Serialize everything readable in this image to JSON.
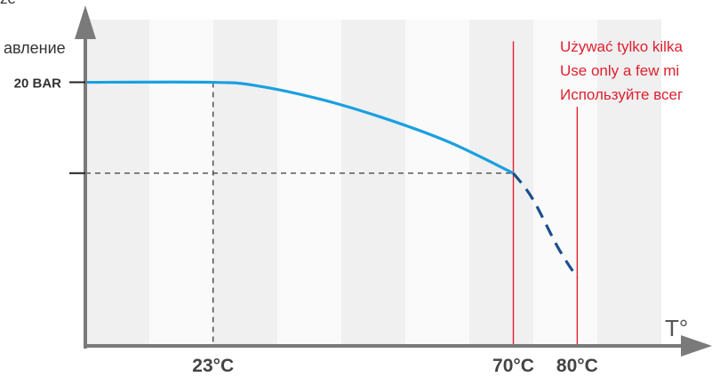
{
  "chart_data": {
    "type": "line",
    "ylabel_top": "ze",
    "ylabel": "авление",
    "xlabel": "T°",
    "ytick_label": "20 BAR",
    "x_ticks": [
      {
        "value": 23,
        "label": "23°C"
      },
      {
        "value": 70,
        "label": "70°C"
      },
      {
        "value": 80,
        "label": "80°C"
      }
    ],
    "y_ticks": [
      {
        "value": 20,
        "label": "20 BAR"
      },
      {
        "value": 10,
        "label": ""
      }
    ],
    "xlim": [
      3,
      94
    ],
    "ylim": [
      -9,
      27
    ],
    "series": [
      {
        "style": "solid",
        "color": "#1aa0e0",
        "points": [
          [
            3,
            20
          ],
          [
            23,
            20
          ],
          [
            30,
            19.6
          ],
          [
            40,
            18.1
          ],
          [
            50,
            16.0
          ],
          [
            60,
            13.4
          ],
          [
            70,
            10
          ]
        ]
      },
      {
        "style": "dashed",
        "color": "#1b4f8f",
        "points": [
          [
            70,
            10
          ],
          [
            73,
            7.2
          ],
          [
            77,
            1.8
          ],
          [
            80,
            -1.5
          ]
        ]
      }
    ],
    "reference_lines": {
      "horizontal_dashed": [
        {
          "y": 20,
          "x_to": 23
        },
        {
          "y": 10,
          "x_to": 70
        }
      ],
      "vertical_dashed": [
        {
          "x": 23,
          "y_from": 20
        }
      ],
      "vertical_red": [
        {
          "x": 70,
          "y_top": 24.5
        },
        {
          "x": 80,
          "y_top": 17.3
        }
      ]
    },
    "annotations": [
      "Używać tylko kilka",
      "Use only a few mi",
      "Используйте всег"
    ],
    "annotation_color": "#e0202e",
    "axis_color": "#7a7a7a",
    "grid": false
  }
}
